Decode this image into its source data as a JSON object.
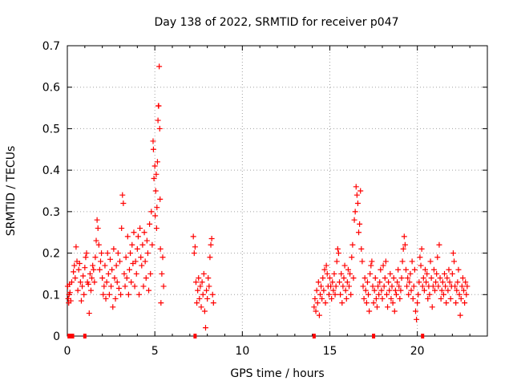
{
  "chart_data": {
    "type": "scatter",
    "title": "Day 138 of 2022, SRMTID for receiver p047",
    "xlabel": "GPS time / hours",
    "ylabel": "SRMTID / TECUs",
    "xlim": [
      0,
      24
    ],
    "ylim": [
      0,
      0.7
    ],
    "xticks": [
      "0",
      "5",
      "10",
      "15",
      "20"
    ],
    "yticks": [
      "0",
      "0.1",
      "0.2",
      "0.3",
      "0.4",
      "0.5",
      "0.6",
      "0.7"
    ],
    "grid": true,
    "marker": "+",
    "series": [
      {
        "name": "p047",
        "color": "#ff0000",
        "points": [
          [
            0.02,
            0.12
          ],
          [
            0.05,
            0.09
          ],
          [
            0.08,
            0.08
          ],
          [
            0.1,
            0.1
          ],
          [
            0.12,
            0.125
          ],
          [
            0.15,
            0.105
          ],
          [
            0.2,
            0.085
          ],
          [
            0.25,
            0.13
          ],
          [
            0.35,
            0.155
          ],
          [
            0.4,
            0.17
          ],
          [
            0.45,
            0.14
          ],
          [
            0.5,
            0.215
          ],
          [
            0.55,
            0.18
          ],
          [
            0.6,
            0.11
          ],
          [
            0.65,
            0.16
          ],
          [
            0.7,
            0.175
          ],
          [
            0.75,
            0.13
          ],
          [
            0.8,
            0.085
          ],
          [
            0.85,
            0.12
          ],
          [
            0.9,
            0.145
          ],
          [
            0.95,
            0.1
          ],
          [
            1.0,
            0.165
          ],
          [
            1.05,
            0.19
          ],
          [
            1.1,
            0.2
          ],
          [
            1.15,
            0.13
          ],
          [
            1.2,
            0.125
          ],
          [
            1.25,
            0.055
          ],
          [
            1.3,
            0.15
          ],
          [
            1.35,
            0.11
          ],
          [
            1.4,
            0.14
          ],
          [
            1.45,
            0.17
          ],
          [
            1.5,
            0.16
          ],
          [
            1.55,
            0.13
          ],
          [
            1.6,
            0.19
          ],
          [
            1.65,
            0.23
          ],
          [
            1.7,
            0.28
          ],
          [
            1.75,
            0.26
          ],
          [
            1.8,
            0.22
          ],
          [
            1.85,
            0.16
          ],
          [
            1.9,
            0.18
          ],
          [
            1.95,
            0.2
          ],
          [
            2.0,
            0.14
          ],
          [
            2.05,
            0.1
          ],
          [
            2.1,
            0.12
          ],
          [
            2.15,
            0.17
          ],
          [
            2.2,
            0.09
          ],
          [
            2.25,
            0.13
          ],
          [
            2.3,
            0.2
          ],
          [
            2.35,
            0.15
          ],
          [
            2.4,
            0.1
          ],
          [
            2.45,
            0.185
          ],
          [
            2.5,
            0.12
          ],
          [
            2.55,
            0.16
          ],
          [
            2.6,
            0.07
          ],
          [
            2.65,
            0.21
          ],
          [
            2.7,
            0.14
          ],
          [
            2.75,
            0.09
          ],
          [
            2.8,
            0.17
          ],
          [
            2.85,
            0.13
          ],
          [
            2.9,
            0.2
          ],
          [
            2.95,
            0.115
          ],
          [
            3.0,
            0.18
          ],
          [
            3.05,
            0.1
          ],
          [
            3.1,
            0.26
          ],
          [
            3.15,
            0.34
          ],
          [
            3.2,
            0.32
          ],
          [
            3.25,
            0.15
          ],
          [
            3.3,
            0.12
          ],
          [
            3.35,
            0.19
          ],
          [
            3.4,
            0.14
          ],
          [
            3.45,
            0.24
          ],
          [
            3.5,
            0.1
          ],
          [
            3.55,
            0.16
          ],
          [
            3.6,
            0.2
          ],
          [
            3.65,
            0.13
          ],
          [
            3.7,
            0.22
          ],
          [
            3.75,
            0.175
          ],
          [
            3.8,
            0.25
          ],
          [
            3.85,
            0.12
          ],
          [
            3.9,
            0.18
          ],
          [
            3.95,
            0.15
          ],
          [
            4.0,
            0.21
          ],
          [
            4.05,
            0.24
          ],
          [
            4.1,
            0.1
          ],
          [
            4.15,
            0.26
          ],
          [
            4.2,
            0.19
          ],
          [
            4.25,
            0.17
          ],
          [
            4.3,
            0.22
          ],
          [
            4.35,
            0.12
          ],
          [
            4.4,
            0.25
          ],
          [
            4.45,
            0.18
          ],
          [
            4.5,
            0.14
          ],
          [
            4.55,
            0.23
          ],
          [
            4.6,
            0.2
          ],
          [
            4.65,
            0.11
          ],
          [
            4.7,
            0.27
          ],
          [
            4.75,
            0.15
          ],
          [
            4.8,
            0.3
          ],
          [
            4.85,
            0.22
          ],
          [
            4.9,
            0.47
          ],
          [
            4.92,
            0.45
          ],
          [
            4.95,
            0.38
          ],
          [
            5.0,
            0.41
          ],
          [
            5.02,
            0.29
          ],
          [
            5.05,
            0.35
          ],
          [
            5.08,
            0.39
          ],
          [
            5.1,
            0.26
          ],
          [
            5.12,
            0.31
          ],
          [
            5.15,
            0.42
          ],
          [
            5.18,
            0.52
          ],
          [
            5.2,
            0.555
          ],
          [
            5.22,
            0.555
          ],
          [
            5.25,
            0.65
          ],
          [
            5.28,
            0.5
          ],
          [
            5.3,
            0.33
          ],
          [
            5.32,
            0.21
          ],
          [
            5.35,
            0.08
          ],
          [
            5.4,
            0.15
          ],
          [
            5.45,
            0.19
          ],
          [
            5.5,
            0.12
          ],
          [
            7.2,
            0.24
          ],
          [
            7.25,
            0.2
          ],
          [
            7.3,
            0.215
          ],
          [
            7.35,
            0.13
          ],
          [
            7.4,
            0.08
          ],
          [
            7.45,
            0.11
          ],
          [
            7.5,
            0.14
          ],
          [
            7.55,
            0.09
          ],
          [
            7.6,
            0.12
          ],
          [
            7.65,
            0.07
          ],
          [
            7.7,
            0.13
          ],
          [
            7.75,
            0.1
          ],
          [
            7.8,
            0.15
          ],
          [
            7.85,
            0.06
          ],
          [
            7.9,
            0.02
          ],
          [
            7.95,
            0.11
          ],
          [
            8.0,
            0.09
          ],
          [
            8.05,
            0.14
          ],
          [
            8.1,
            0.12
          ],
          [
            8.15,
            0.19
          ],
          [
            8.2,
            0.22
          ],
          [
            8.25,
            0.235
          ],
          [
            8.3,
            0.1
          ],
          [
            8.35,
            0.08
          ],
          [
            14.1,
            0.07
          ],
          [
            14.15,
            0.09
          ],
          [
            14.2,
            0.06
          ],
          [
            14.25,
            0.11
          ],
          [
            14.3,
            0.08
          ],
          [
            14.35,
            0.13
          ],
          [
            14.4,
            0.05
          ],
          [
            14.45,
            0.1
          ],
          [
            14.5,
            0.12
          ],
          [
            14.55,
            0.09
          ],
          [
            14.6,
            0.14
          ],
          [
            14.65,
            0.11
          ],
          [
            14.7,
            0.16
          ],
          [
            14.75,
            0.08
          ],
          [
            14.8,
            0.17
          ],
          [
            14.85,
            0.15
          ],
          [
            14.9,
            0.12
          ],
          [
            14.95,
            0.1
          ],
          [
            15.0,
            0.14
          ],
          [
            15.05,
            0.12
          ],
          [
            15.1,
            0.09
          ],
          [
            15.15,
            0.13
          ],
          [
            15.2,
            0.11
          ],
          [
            15.25,
            0.15
          ],
          [
            15.3,
            0.1
          ],
          [
            15.35,
            0.12
          ],
          [
            15.4,
            0.18
          ],
          [
            15.45,
            0.21
          ],
          [
            15.5,
            0.2
          ],
          [
            15.55,
            0.13
          ],
          [
            15.6,
            0.1
          ],
          [
            15.65,
            0.15
          ],
          [
            15.7,
            0.08
          ],
          [
            15.75,
            0.12
          ],
          [
            15.8,
            0.14
          ],
          [
            15.85,
            0.17
          ],
          [
            15.9,
            0.11
          ],
          [
            15.95,
            0.09
          ],
          [
            16.0,
            0.13
          ],
          [
            16.05,
            0.16
          ],
          [
            16.1,
            0.12
          ],
          [
            16.15,
            0.15
          ],
          [
            16.2,
            0.1
          ],
          [
            16.25,
            0.19
          ],
          [
            16.3,
            0.22
          ],
          [
            16.35,
            0.14
          ],
          [
            16.4,
            0.28
          ],
          [
            16.45,
            0.3
          ],
          [
            16.5,
            0.36
          ],
          [
            16.55,
            0.34
          ],
          [
            16.6,
            0.32
          ],
          [
            16.65,
            0.25
          ],
          [
            16.7,
            0.27
          ],
          [
            16.75,
            0.35
          ],
          [
            16.8,
            0.21
          ],
          [
            16.85,
            0.18
          ],
          [
            16.9,
            0.12
          ],
          [
            16.95,
            0.09
          ],
          [
            17.0,
            0.14
          ],
          [
            17.05,
            0.11
          ],
          [
            17.1,
            0.08
          ],
          [
            17.15,
            0.13
          ],
          [
            17.2,
            0.1
          ],
          [
            17.25,
            0.06
          ],
          [
            17.3,
            0.15
          ],
          [
            17.35,
            0.17
          ],
          [
            17.4,
            0.18
          ],
          [
            17.45,
            0.12
          ],
          [
            17.5,
            0.08
          ],
          [
            17.55,
            0.11
          ],
          [
            17.6,
            0.14
          ],
          [
            17.65,
            0.09
          ],
          [
            17.7,
            0.07
          ],
          [
            17.75,
            0.12
          ],
          [
            17.8,
            0.1
          ],
          [
            17.85,
            0.13
          ],
          [
            17.9,
            0.16
          ],
          [
            17.95,
            0.11
          ],
          [
            18.0,
            0.09
          ],
          [
            18.05,
            0.17
          ],
          [
            18.1,
            0.12
          ],
          [
            18.15,
            0.14
          ],
          [
            18.2,
            0.18
          ],
          [
            18.25,
            0.1
          ],
          [
            18.3,
            0.07
          ],
          [
            18.35,
            0.13
          ],
          [
            18.4,
            0.11
          ],
          [
            18.45,
            0.15
          ],
          [
            18.5,
            0.09
          ],
          [
            18.55,
            0.12
          ],
          [
            18.6,
            0.08
          ],
          [
            18.65,
            0.14
          ],
          [
            18.7,
            0.06
          ],
          [
            18.75,
            0.11
          ],
          [
            18.8,
            0.1
          ],
          [
            18.85,
            0.13
          ],
          [
            18.9,
            0.16
          ],
          [
            18.95,
            0.12
          ],
          [
            19.0,
            0.09
          ],
          [
            19.05,
            0.11
          ],
          [
            19.1,
            0.14
          ],
          [
            19.15,
            0.18
          ],
          [
            19.2,
            0.21
          ],
          [
            19.25,
            0.24
          ],
          [
            19.3,
            0.22
          ],
          [
            19.35,
            0.16
          ],
          [
            19.4,
            0.12
          ],
          [
            19.45,
            0.14
          ],
          [
            19.5,
            0.1
          ],
          [
            19.55,
            0.13
          ],
          [
            19.6,
            0.15
          ],
          [
            19.65,
            0.11
          ],
          [
            19.7,
            0.18
          ],
          [
            19.75,
            0.09
          ],
          [
            19.8,
            0.12
          ],
          [
            19.85,
            0.16
          ],
          [
            19.9,
            0.06
          ],
          [
            19.95,
            0.04
          ],
          [
            20.0,
            0.08
          ],
          [
            20.05,
            0.1
          ],
          [
            20.1,
            0.13
          ],
          [
            20.15,
            0.19
          ],
          [
            20.2,
            0.17
          ],
          [
            20.25,
            0.21
          ],
          [
            20.3,
            0.12
          ],
          [
            20.35,
            0.14
          ],
          [
            20.4,
            0.11
          ],
          [
            20.45,
            0.16
          ],
          [
            20.5,
            0.13
          ],
          [
            20.55,
            0.15
          ],
          [
            20.6,
            0.09
          ],
          [
            20.65,
            0.12
          ],
          [
            20.7,
            0.1
          ],
          [
            20.75,
            0.18
          ],
          [
            20.8,
            0.14
          ],
          [
            20.85,
            0.07
          ],
          [
            20.9,
            0.12
          ],
          [
            20.95,
            0.16
          ],
          [
            21.0,
            0.11
          ],
          [
            21.05,
            0.13
          ],
          [
            21.1,
            0.15
          ],
          [
            21.15,
            0.19
          ],
          [
            21.2,
            0.12
          ],
          [
            21.25,
            0.22
          ],
          [
            21.3,
            0.14
          ],
          [
            21.35,
            0.09
          ],
          [
            21.4,
            0.11
          ],
          [
            21.45,
            0.13
          ],
          [
            21.5,
            0.1
          ],
          [
            21.55,
            0.15
          ],
          [
            21.6,
            0.12
          ],
          [
            21.65,
            0.08
          ],
          [
            21.7,
            0.14
          ],
          [
            21.75,
            0.11
          ],
          [
            21.8,
            0.16
          ],
          [
            21.85,
            0.13
          ],
          [
            21.9,
            0.09
          ],
          [
            21.95,
            0.12
          ],
          [
            22.0,
            0.15
          ],
          [
            22.05,
            0.2
          ],
          [
            22.1,
            0.18
          ],
          [
            22.15,
            0.12
          ],
          [
            22.2,
            0.08
          ],
          [
            22.25,
            0.11
          ],
          [
            22.3,
            0.13
          ],
          [
            22.35,
            0.16
          ],
          [
            22.4,
            0.1
          ],
          [
            22.45,
            0.05
          ],
          [
            22.5,
            0.09
          ],
          [
            22.55,
            0.12
          ],
          [
            22.6,
            0.14
          ],
          [
            22.65,
            0.11
          ],
          [
            22.7,
            0.08
          ],
          [
            22.75,
            0.13
          ],
          [
            22.8,
            0.1
          ],
          [
            22.85,
            0.12
          ]
        ]
      }
    ],
    "gap_marks_x": [
      0.1,
      0.2,
      0.3,
      1.0,
      7.3,
      14.1,
      17.5,
      20.3
    ]
  }
}
